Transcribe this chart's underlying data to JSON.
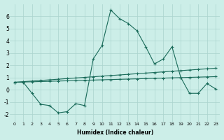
{
  "xlabel": "Humidex (Indice chaleur)",
  "bg_color": "#cceee8",
  "grid_color": "#aad4ce",
  "line_color": "#1a6b5a",
  "xlim": [
    -0.5,
    23.5
  ],
  "ylim": [
    -2.6,
    7.0
  ],
  "yticks": [
    -2,
    -1,
    0,
    1,
    2,
    3,
    4,
    5,
    6
  ],
  "xticks": [
    0,
    1,
    2,
    3,
    4,
    5,
    6,
    7,
    8,
    9,
    10,
    11,
    12,
    13,
    14,
    15,
    16,
    17,
    18,
    19,
    20,
    21,
    22,
    23
  ],
  "line1_x": [
    0,
    1,
    2,
    3,
    4,
    5,
    6,
    7,
    8,
    9,
    10,
    11,
    12,
    13,
    14,
    15,
    16,
    17,
    18,
    19,
    20,
    21,
    22,
    23
  ],
  "line1_y": [
    0.6,
    0.65,
    0.7,
    0.75,
    0.8,
    0.85,
    0.9,
    0.95,
    1.0,
    1.05,
    1.1,
    1.15,
    1.2,
    1.25,
    1.3,
    1.35,
    1.4,
    1.45,
    1.5,
    1.55,
    1.6,
    1.65,
    1.7,
    1.75
  ],
  "line2_x": [
    0,
    1,
    2,
    3,
    4,
    5,
    6,
    7,
    8,
    9,
    10,
    11,
    12,
    13,
    14,
    15,
    16,
    17,
    18,
    19,
    20,
    21,
    22,
    23
  ],
  "line2_y": [
    0.6,
    0.62,
    0.64,
    0.66,
    0.68,
    0.7,
    0.72,
    0.74,
    0.76,
    0.78,
    0.8,
    0.82,
    0.84,
    0.86,
    0.88,
    0.9,
    0.92,
    0.94,
    0.96,
    0.98,
    1.0,
    1.02,
    1.04,
    1.06
  ],
  "line3_x": [
    0,
    1,
    2,
    3,
    4,
    5,
    6,
    7,
    8,
    9,
    10,
    11,
    12,
    13,
    14,
    15,
    16,
    17,
    18,
    19,
    20,
    21,
    22,
    23
  ],
  "line3_y": [
    0.6,
    0.6,
    -0.3,
    -1.2,
    -1.3,
    -1.9,
    -1.8,
    -1.15,
    -1.3,
    2.5,
    3.6,
    6.5,
    5.8,
    5.4,
    4.8,
    3.5,
    2.1,
    2.5,
    3.5,
    1.0,
    -0.3,
    -0.3,
    0.5,
    0.05
  ]
}
